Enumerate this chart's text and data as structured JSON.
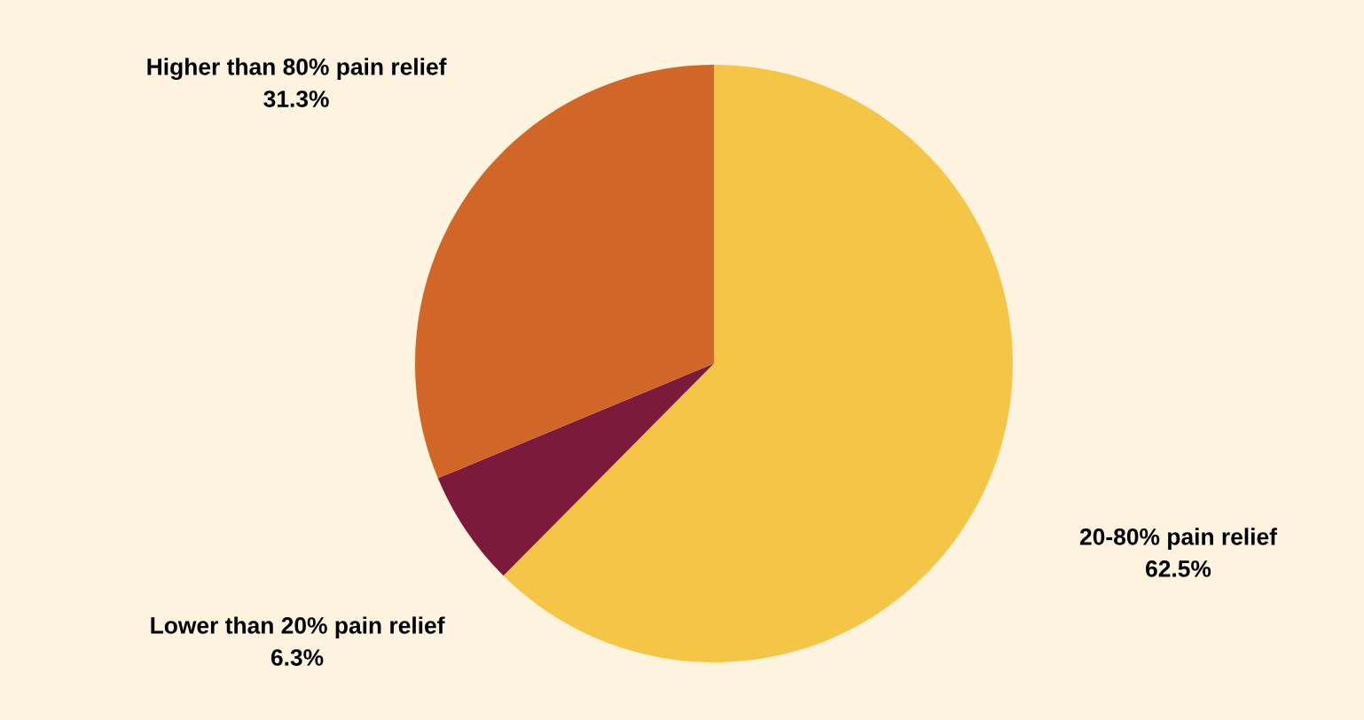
{
  "chart_data": {
    "type": "pie",
    "categories": [
      "20-80% pain relief",
      "Lower than 20% pain relief",
      "Higher than 80% pain relief"
    ],
    "values": [
      62.5,
      6.3,
      31.3
    ],
    "value_labels": [
      "62.5%",
      "6.3%",
      "31.3%"
    ],
    "colors": [
      "#f5c545",
      "#7b1a3b",
      "#d06728"
    ]
  }
}
